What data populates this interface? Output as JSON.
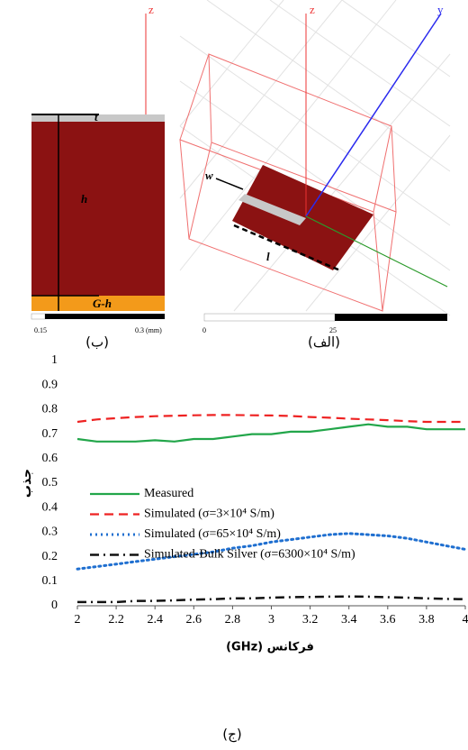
{
  "figures": {
    "left": {
      "labels": {
        "t": "t",
        "h": "h",
        "gh": "G-h",
        "z": "z"
      },
      "scale": [
        "0.15",
        "0.3 (mm)"
      ],
      "caption": "(ب)"
    },
    "right": {
      "labels": {
        "w": "w",
        "l": "l",
        "z": "z",
        "y": "y"
      },
      "scale": [
        "0",
        "25"
      ],
      "caption": "(الف)"
    }
  },
  "chart_data": {
    "type": "line",
    "caption": "(ج)",
    "xlabel": "(GHz) فرکانس",
    "ylabel": "جذب",
    "x": [
      2,
      2.1,
      2.2,
      2.3,
      2.4,
      2.5,
      2.6,
      2.7,
      2.8,
      2.9,
      3,
      3.1,
      3.2,
      3.3,
      3.4,
      3.5,
      3.6,
      3.7,
      3.8,
      3.9,
      4
    ],
    "series": [
      {
        "name": "Measured",
        "color": "#22a64a",
        "dash": "solid",
        "values": [
          0.68,
          0.67,
          0.67,
          0.67,
          0.675,
          0.67,
          0.68,
          0.68,
          0.69,
          0.7,
          0.7,
          0.71,
          0.71,
          0.72,
          0.73,
          0.74,
          0.73,
          0.73,
          0.72,
          0.72,
          0.72
        ]
      },
      {
        "name": "Simulated (σ=3×10⁴ S/m)",
        "color": "#ee2222",
        "dash": "dashed",
        "values": [
          0.75,
          0.76,
          0.765,
          0.77,
          0.773,
          0.775,
          0.777,
          0.778,
          0.778,
          0.777,
          0.776,
          0.774,
          0.77,
          0.767,
          0.763,
          0.76,
          0.757,
          0.753,
          0.75,
          0.75,
          0.75
        ]
      },
      {
        "name": "Simulated (σ=65×10⁴ S/m)",
        "color": "#1f6fd0",
        "dash": "dotted",
        "values": [
          0.15,
          0.16,
          0.17,
          0.18,
          0.19,
          0.2,
          0.21,
          0.22,
          0.235,
          0.245,
          0.26,
          0.27,
          0.28,
          0.29,
          0.295,
          0.29,
          0.285,
          0.275,
          0.26,
          0.245,
          0.23
        ]
      },
      {
        "name": "Simulated-Bulk Silver (σ=6300×10⁴ S/m)",
        "color": "#111111",
        "dash": "dashdot",
        "values": [
          0.015,
          0.015,
          0.015,
          0.02,
          0.02,
          0.022,
          0.025,
          0.027,
          0.03,
          0.03,
          0.033,
          0.035,
          0.036,
          0.037,
          0.038,
          0.037,
          0.035,
          0.033,
          0.03,
          0.028,
          0.027
        ]
      }
    ],
    "xlim": [
      2,
      4
    ],
    "xticks": [
      2,
      2.2,
      2.4,
      2.6,
      2.8,
      3,
      3.2,
      3.4,
      3.6,
      3.8,
      4
    ],
    "ylim": [
      0,
      1
    ],
    "yticks": [
      0,
      0.1,
      0.2,
      0.3,
      0.4,
      0.5,
      0.6,
      0.7,
      0.8,
      0.9,
      1
    ],
    "grid": false
  }
}
